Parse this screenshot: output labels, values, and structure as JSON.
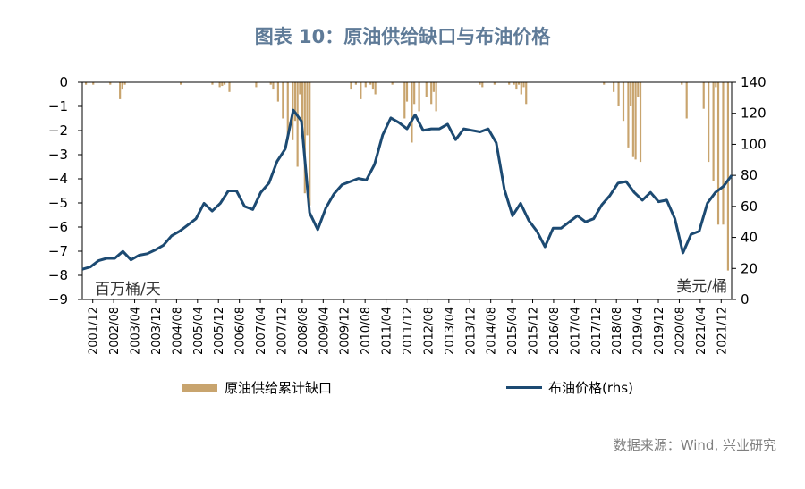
{
  "chart_data": {
    "type": "bar+line",
    "title": "图表 10：原油供给缺口与布油价格",
    "left_unit": "百万桶/天",
    "right_unit": "美元/桶",
    "source": "数据来源：Wind, 兴业研究",
    "left_axis": {
      "min": -9,
      "max": 0,
      "ticks": [
        "0",
        "−1",
        "−2",
        "−3",
        "−4",
        "−5",
        "−6",
        "−7",
        "−8",
        "−9"
      ]
    },
    "right_axis": {
      "min": 0,
      "max": 140,
      "ticks": [
        "140",
        "120",
        "100",
        "80",
        "60",
        "40",
        "20",
        "0"
      ]
    },
    "x_ticks": [
      "2001/12",
      "2002/08",
      "2003/04",
      "2003/12",
      "2004/08",
      "2005/04",
      "2005/12",
      "2006/08",
      "2007/04",
      "2007/12",
      "2008/08",
      "2009/04",
      "2009/12",
      "2010/08",
      "2011/04",
      "2011/12",
      "2012/08",
      "2013/04",
      "2013/12",
      "2014/08",
      "2015/04",
      "2015/12",
      "2016/08",
      "2017/04",
      "2017/12",
      "2018/08",
      "2019/04",
      "2019/12",
      "2020/08",
      "2021/04",
      "2021/12"
    ],
    "series": [
      {
        "name": "原油供给累计缺口",
        "type": "bar",
        "color": "#c8a46e",
        "values": [
          0,
          -0.1,
          0,
          0,
          -0.1,
          0,
          0,
          0,
          0,
          0,
          0,
          -0.1,
          0,
          0,
          0,
          -0.7,
          -0.3,
          -0.1,
          0,
          0,
          0,
          0,
          0,
          0,
          0,
          0,
          0,
          0,
          0,
          0,
          0,
          0,
          0,
          0,
          0,
          0,
          0,
          0,
          0,
          0,
          -0.1,
          0,
          0,
          0,
          0,
          0,
          0,
          0,
          0,
          0,
          0,
          0,
          0,
          -0.1,
          0,
          0,
          -0.2,
          -0.15,
          -0.1,
          0,
          -0.4,
          0,
          0,
          0,
          0,
          0,
          0,
          0,
          0,
          0,
          0,
          -0.2,
          0,
          0,
          0,
          0,
          0,
          -0.1,
          -0.3,
          0,
          -0.8,
          0,
          -1.5,
          0,
          -2.4,
          0,
          -2.4,
          -1.6,
          -3.5,
          -0.5,
          -1.8,
          -4.6,
          -2.2,
          -5.1,
          0,
          0,
          0,
          0,
          0,
          0,
          0,
          0,
          0,
          0,
          0,
          0,
          0,
          0,
          0,
          0,
          -0.3,
          0,
          -0.1,
          0,
          -0.7,
          0,
          -0.2,
          0,
          -0.1,
          -0.3,
          -0.5,
          0,
          0,
          0,
          0,
          0,
          0,
          -0.1,
          0,
          0,
          0,
          0,
          -1.5,
          -0.8,
          0,
          -2.5,
          -0.9,
          0,
          -1.2,
          0,
          0,
          -0.6,
          0,
          -0.9,
          -0.4,
          -1.2,
          0,
          0,
          0,
          0,
          0,
          0,
          0,
          0,
          0,
          0,
          0,
          0,
          0,
          0,
          0,
          0,
          0,
          -0.1,
          -0.2,
          0,
          0,
          0,
          0,
          -0.1,
          0,
          0,
          0,
          0,
          0,
          -0.1,
          0,
          -0.1,
          -0.3,
          -0.1,
          -0.5,
          -0.2,
          -0.9,
          0,
          0,
          0,
          0,
          0,
          0,
          0,
          0,
          0,
          0,
          0,
          0,
          0,
          0,
          0,
          0,
          0,
          0,
          0,
          0,
          0,
          0,
          0,
          0,
          0,
          0,
          0,
          0,
          0,
          0,
          0,
          -0.1,
          0,
          0,
          0,
          -0.4,
          0,
          -1.0,
          0,
          -1.6,
          0,
          -2.7,
          -1.0,
          -3.1,
          -3.2,
          -0.6,
          -3.3,
          0,
          0,
          0,
          0,
          0,
          0,
          0,
          0,
          0,
          0,
          0,
          0,
          0,
          0,
          0,
          0,
          -0.1,
          0,
          -1.5,
          0,
          0,
          0,
          0,
          0,
          0,
          -1.1,
          0,
          -3.3,
          0,
          -4.1,
          -0.2,
          -5.9,
          0,
          -5.9,
          0,
          -7.8,
          0
        ]
      },
      {
        "name": "布油价格(rhs)",
        "type": "line",
        "color": "#1c4a72",
        "values": [
          19.5,
          21,
          25,
          26.5,
          26.5,
          31,
          25.5,
          28.5,
          29.5,
          32,
          35,
          41,
          44,
          48,
          52,
          62,
          57,
          62,
          70,
          70,
          60,
          58,
          69,
          75,
          89,
          97,
          122,
          115,
          56,
          45,
          59,
          68,
          74,
          76,
          78,
          77,
          87,
          106,
          117,
          114,
          110,
          119,
          109,
          110,
          110,
          113,
          103,
          110,
          109,
          108,
          110,
          101,
          71,
          54,
          62,
          51,
          44,
          34,
          46,
          46,
          50,
          54,
          50,
          52,
          61,
          67,
          75,
          76,
          69,
          64,
          69,
          63,
          64,
          52,
          30,
          42,
          44,
          62,
          69,
          73,
          80
        ]
      }
    ]
  }
}
